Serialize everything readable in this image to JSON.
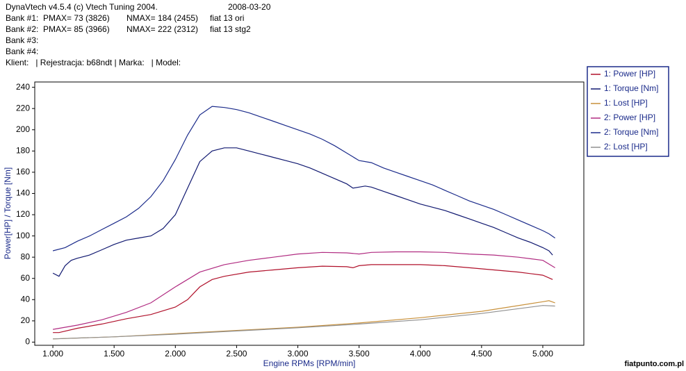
{
  "header": [
    [
      "DynaVtech v4.5.4 (c) Vtech Tuning 2004.",
      "2008-03-20"
    ],
    [
      "Bank #1:",
      "PMAX= 73 (3826)",
      "NMAX= 184 (2455)",
      "fiat 13 ori"
    ],
    [
      "Bank #2:",
      "PMAX= 85 (3966)",
      "NMAX= 222 (2312)",
      "fiat 13 stg2"
    ],
    [
      "Bank #3:"
    ],
    [
      "Bank #4:"
    ],
    [
      "Klient:   | Rejestracja: b68ndt | Marka:   | Model:"
    ]
  ],
  "watermark": "fiatpunto.com.pl",
  "chart_data": {
    "type": "line",
    "x_label": "Engine RPMs [RPM/min]",
    "y_label": "Power[HP] / Torque [Nm]",
    "xlim": [
      852,
      5335
    ],
    "ylim": [
      -3,
      245
    ],
    "xticks": [
      {
        "value": 1000,
        "label": "1.000"
      },
      {
        "value": 1500,
        "label": "1.500"
      },
      {
        "value": 2000,
        "label": "2.000"
      },
      {
        "value": 2500,
        "label": "2.500"
      },
      {
        "value": 3000,
        "label": "3.000"
      },
      {
        "value": 3500,
        "label": "3.500"
      },
      {
        "value": 4000,
        "label": "4.000"
      },
      {
        "value": 4500,
        "label": "4.500"
      },
      {
        "value": 5000,
        "label": "5.000"
      }
    ],
    "yticks": [
      0,
      20,
      40,
      60,
      80,
      100,
      120,
      140,
      160,
      180,
      200,
      220,
      240
    ],
    "legend": "top-right",
    "series": [
      {
        "name": "1: Power [HP]",
        "color": "#b0102a",
        "x": [
          1000,
          1050,
          1200,
          1400,
          1600,
          1800,
          2000,
          2100,
          2200,
          2300,
          2400,
          2600,
          2800,
          3000,
          3200,
          3400,
          3450,
          3500,
          3600,
          3800,
          4000,
          4200,
          4400,
          4600,
          4800,
          5000,
          5080
        ],
        "values": [
          9,
          9,
          13,
          17,
          22,
          26,
          33,
          40,
          52,
          59,
          62,
          66,
          68,
          70,
          71.5,
          71,
          70,
          72,
          73,
          73,
          73,
          72,
          70,
          68,
          66,
          63,
          59
        ]
      },
      {
        "name": "1: Torque [Nm]",
        "color": "#101870",
        "x": [
          1000,
          1050,
          1100,
          1150,
          1200,
          1300,
          1400,
          1500,
          1600,
          1700,
          1800,
          1900,
          2000,
          2100,
          2200,
          2300,
          2400,
          2500,
          2600,
          2700,
          2800,
          2900,
          3000,
          3100,
          3200,
          3300,
          3400,
          3450,
          3500,
          3550,
          3600,
          3700,
          3800,
          3900,
          4000,
          4100,
          4200,
          4300,
          4400,
          4500,
          4600,
          4700,
          4800,
          4900,
          5000,
          5050,
          5080
        ],
        "values": [
          65,
          62,
          72,
          77,
          79,
          82,
          87,
          92,
          96,
          98,
          100,
          107,
          120,
          145,
          170,
          180,
          183,
          183,
          180,
          177,
          174,
          171,
          168,
          164,
          159,
          154,
          149,
          145,
          146,
          147,
          146,
          142,
          138,
          134,
          130,
          127,
          124,
          120,
          116,
          112,
          108,
          103,
          98,
          94,
          89,
          86,
          82
        ]
      },
      {
        "name": "1: Lost [HP]",
        "color": "#c8903a",
        "x": [
          1000,
          1500,
          2000,
          2500,
          3000,
          3500,
          4000,
          4500,
          5000,
          5050,
          5100
        ],
        "values": [
          3,
          5,
          8,
          11,
          14,
          18,
          23,
          29,
          38,
          39,
          37
        ]
      },
      {
        "name": "2: Power [HP]",
        "color": "#b02a80",
        "x": [
          1000,
          1200,
          1400,
          1600,
          1800,
          2000,
          2200,
          2400,
          2600,
          2800,
          3000,
          3200,
          3400,
          3500,
          3600,
          3800,
          4000,
          4200,
          4400,
          4600,
          4800,
          5000,
          5100
        ],
        "values": [
          12,
          16,
          21,
          28,
          37,
          52,
          66,
          73,
          77,
          80,
          83,
          84.5,
          84,
          83,
          84.5,
          85,
          85,
          84.5,
          83,
          82,
          80,
          77,
          70
        ]
      },
      {
        "name": "2: Torque [Nm]",
        "color": "#1a2a8a",
        "x": [
          1000,
          1100,
          1200,
          1300,
          1400,
          1500,
          1600,
          1700,
          1800,
          1900,
          2000,
          2100,
          2200,
          2300,
          2400,
          2500,
          2600,
          2700,
          2800,
          2900,
          3000,
          3100,
          3200,
          3300,
          3400,
          3500,
          3600,
          3700,
          3800,
          3900,
          4000,
          4100,
          4200,
          4300,
          4400,
          4500,
          4600,
          4700,
          4800,
          4900,
          5000,
          5050,
          5100
        ],
        "values": [
          86,
          89,
          95,
          100,
          106,
          112,
          118,
          126,
          137,
          152,
          172,
          195,
          214,
          222,
          221,
          219,
          216,
          212,
          208,
          204,
          200,
          196,
          191,
          185,
          178,
          171,
          169,
          164,
          160,
          156,
          152,
          148,
          143,
          138,
          133,
          129,
          125,
          120,
          115,
          110,
          105,
          102,
          98
        ]
      },
      {
        "name": "2: Lost [HP]",
        "color": "#909090",
        "x": [
          1000,
          1500,
          2000,
          2500,
          3000,
          3500,
          4000,
          4500,
          5000,
          5100
        ],
        "values": [
          3,
          5,
          7.5,
          10.5,
          13.5,
          17,
          21,
          27,
          34.5,
          34
        ]
      }
    ]
  }
}
